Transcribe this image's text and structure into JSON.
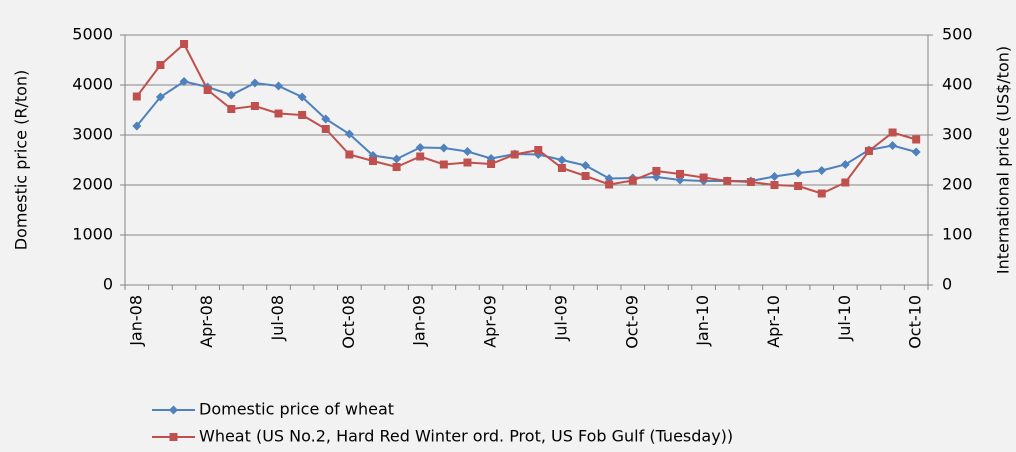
{
  "chart_data": {
    "type": "line",
    "categories": [
      "Jan-08",
      null,
      null,
      "Apr-08",
      null,
      null,
      "Jul-08",
      null,
      null,
      "Oct-08",
      null,
      null,
      "Jan-09",
      null,
      null,
      "Apr-09",
      null,
      null,
      "Jul-09",
      null,
      null,
      "Oct-09",
      null,
      null,
      "Jan-10",
      null,
      null,
      "Apr-10",
      null,
      null,
      "Jul-10",
      null,
      null,
      "Oct-10"
    ],
    "series": [
      {
        "name": "Domestic price of wheat",
        "color": "#4f81bd",
        "marker": "diamond",
        "values": [
          3180,
          3760,
          4070,
          3960,
          3800,
          4040,
          3980,
          3760,
          3320,
          3020,
          2590,
          2520,
          2750,
          2740,
          2670,
          2530,
          2620,
          2610,
          2500,
          2390,
          2130,
          2140,
          2160,
          2100,
          2080,
          2080,
          2080,
          2170,
          2240,
          2290,
          2410,
          2700,
          2790,
          2660
        ]
      },
      {
        "name": "Wheat (US No.2, Hard Red Winter ord. Prot, US Fob Gulf (Tuesday))",
        "color": "#c0504d",
        "marker": "square",
        "axis": "y2",
        "values": [
          377,
          440,
          482,
          390,
          352,
          358,
          343,
          340,
          312,
          261,
          248,
          236,
          257,
          241,
          245,
          242,
          261,
          270,
          234,
          218,
          201,
          209,
          228,
          222,
          215,
          208,
          206,
          200,
          198,
          183,
          205,
          268,
          305,
          291
        ]
      }
    ],
    "y_label": "Domestic price (R/ton)",
    "y2_label": "International price (US$/ton)",
    "ylim": [
      0,
      5000
    ],
    "yticks": [
      0,
      1000,
      2000,
      3000,
      4000,
      5000
    ],
    "y2lim": [
      0,
      500
    ],
    "y2ticks": [
      0,
      100,
      200,
      300,
      400,
      500
    ],
    "grid": true,
    "legend": "bottom"
  }
}
